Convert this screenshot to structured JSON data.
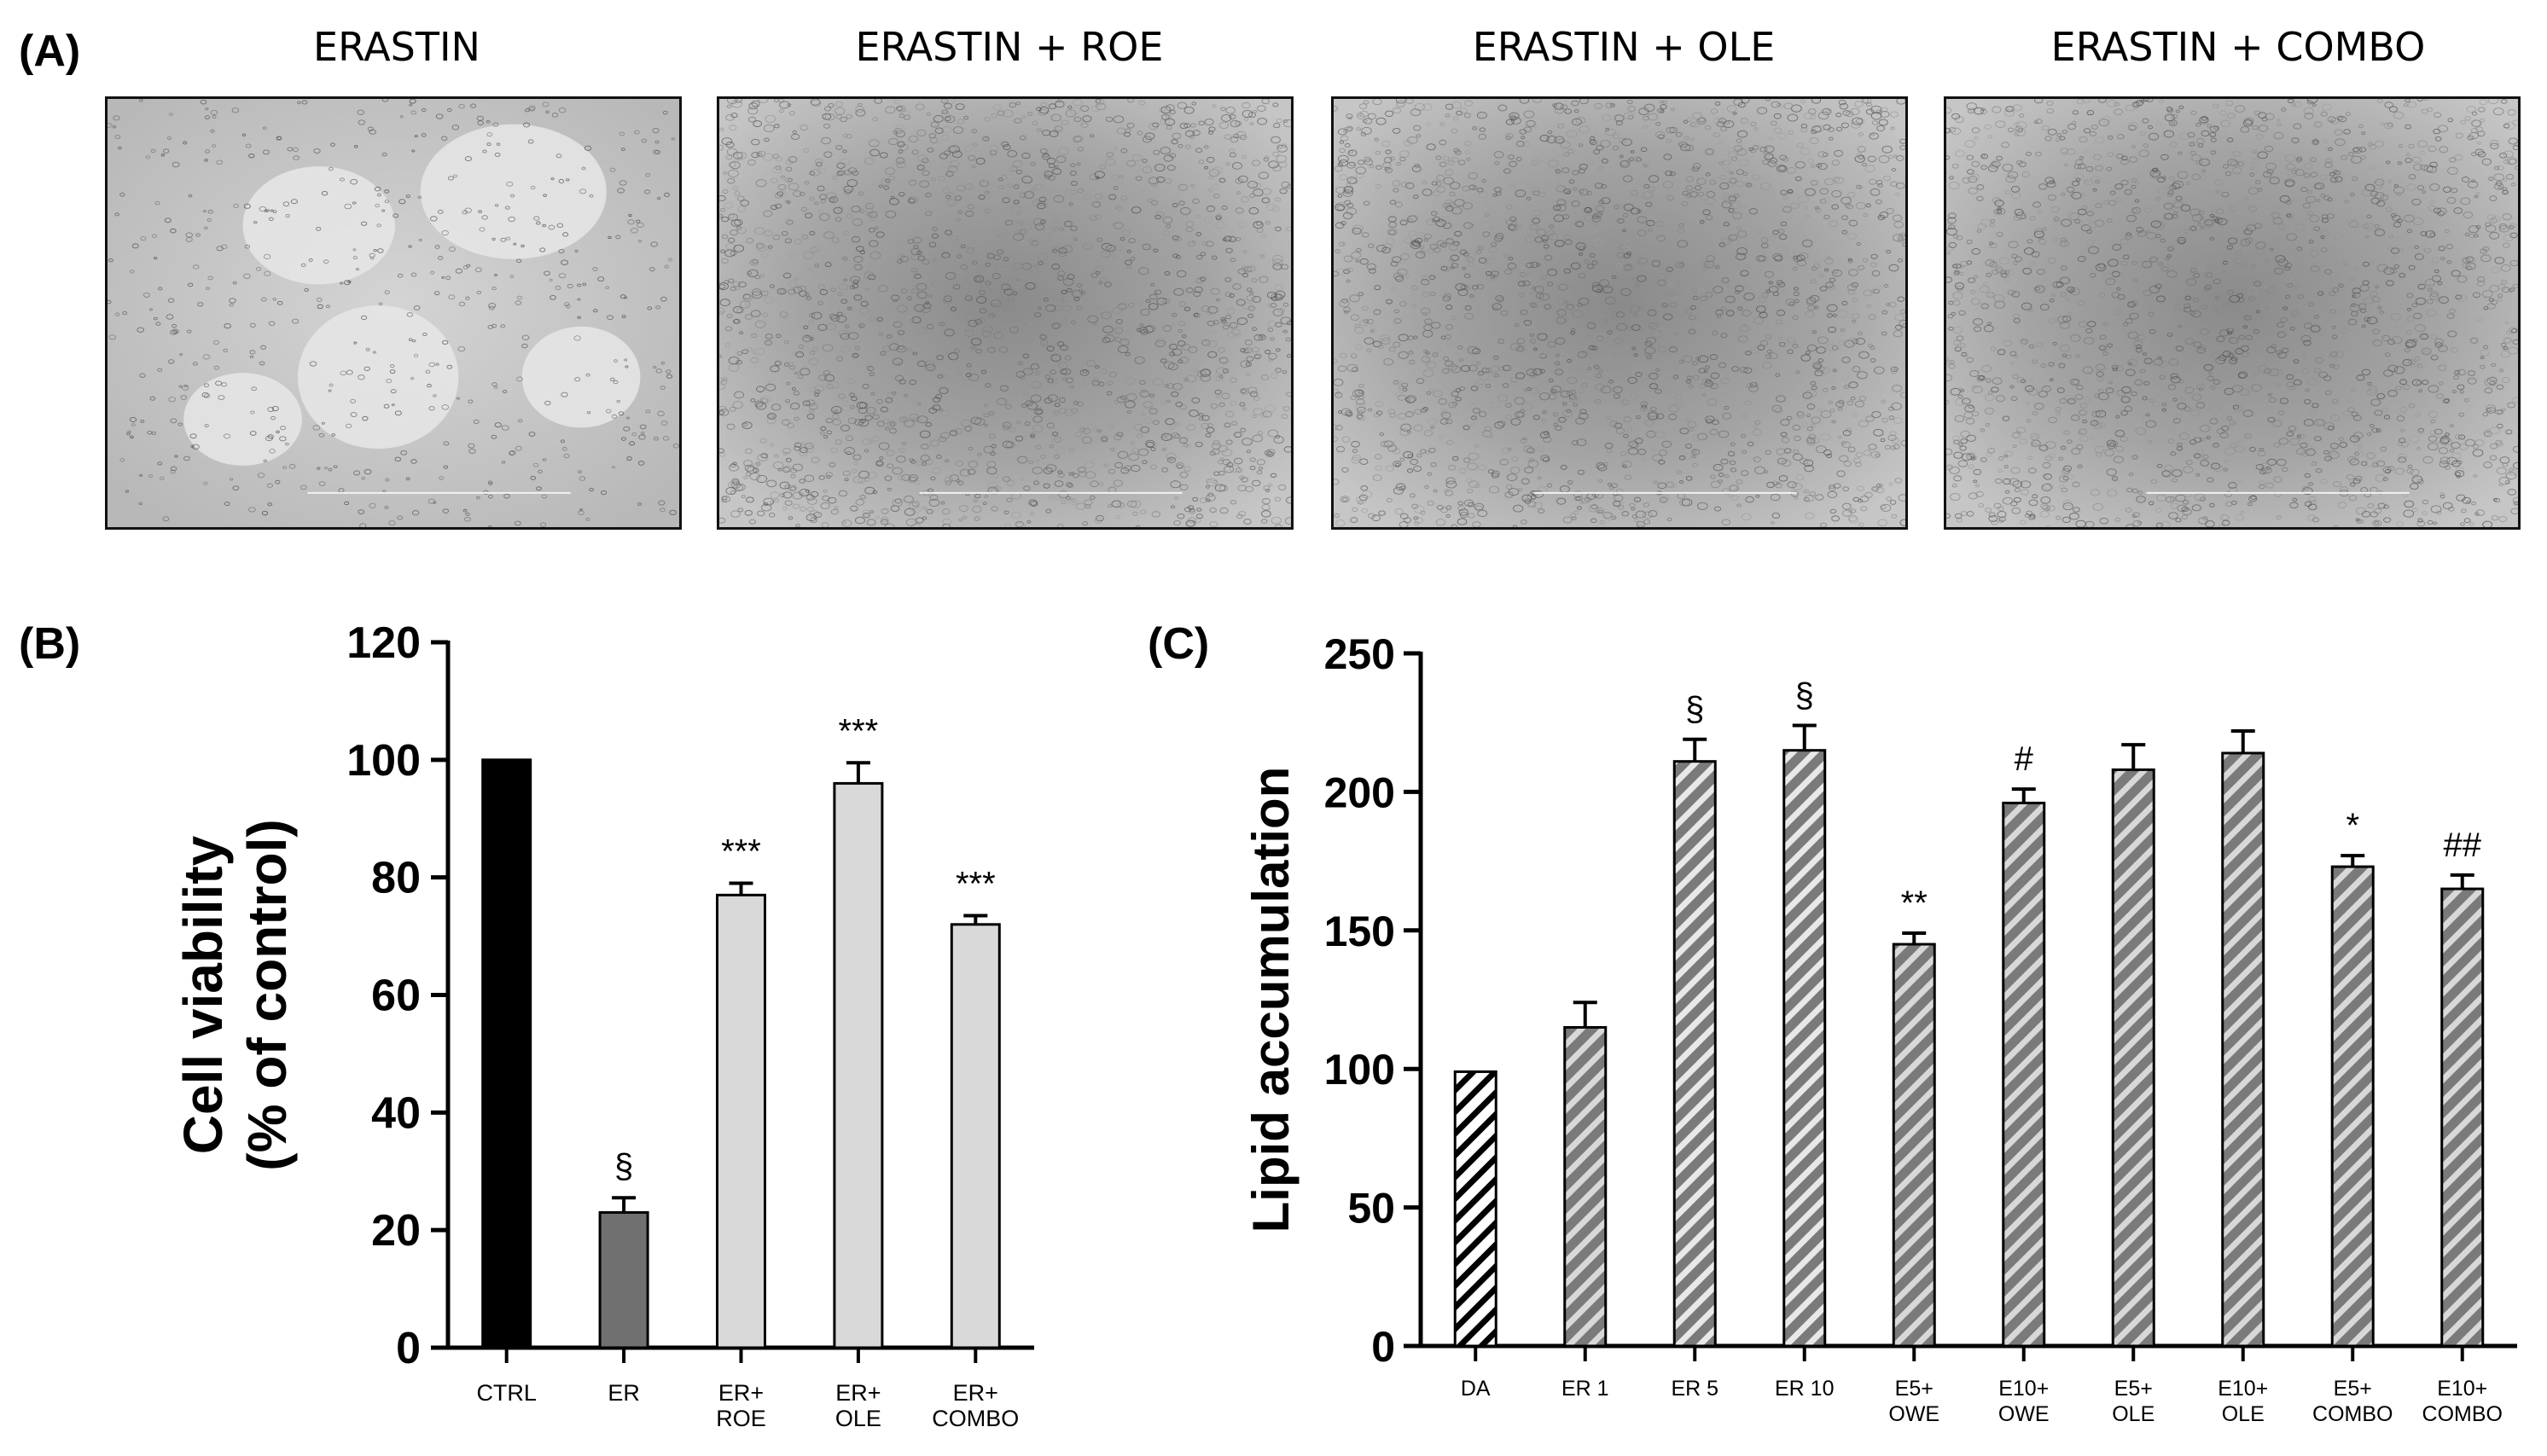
{
  "panels": {
    "a": "(A)",
    "b": "(B)",
    "c": "(C)"
  },
  "micrographs": [
    {
      "label": "ERASTIN",
      "density": "sparse"
    },
    {
      "label": "ERASTIN + ROE",
      "density": "confluent"
    },
    {
      "label": "ERASTIN + OLE",
      "density": "confluent"
    },
    {
      "label": "ERASTIN + COMBO",
      "density": "confluent"
    }
  ],
  "chart_data": [
    {
      "type": "bar",
      "panel": "(B)",
      "ylabel_line1": "Cell viability",
      "ylabel_line2": "(% of control)",
      "ylim": [
        0,
        120
      ],
      "yticks": [
        0,
        20,
        40,
        60,
        80,
        100,
        120
      ],
      "categories": [
        [
          "CTRL"
        ],
        [
          "ER"
        ],
        [
          "ER+",
          "ROE"
        ],
        [
          "ER+",
          "OLE"
        ],
        [
          "ER+",
          "COMBO"
        ]
      ],
      "values": [
        100,
        23,
        77,
        96,
        72
      ],
      "errors": [
        0,
        2.5,
        2,
        3.5,
        1.5
      ],
      "annotations": [
        "",
        "§",
        "***",
        "***",
        "***"
      ],
      "colors": [
        "#000000",
        "#707070",
        "#d9d9d9",
        "#d9d9d9",
        "#d9d9d9"
      ]
    },
    {
      "type": "bar",
      "panel": "(C)",
      "ylabel": "Lipid accumulation",
      "ylim": [
        0,
        250
      ],
      "yticks": [
        0,
        50,
        100,
        150,
        200,
        250
      ],
      "categories": [
        [
          "DA"
        ],
        [
          "ER 1"
        ],
        [
          "ER 5"
        ],
        [
          "ER 10"
        ],
        [
          "E5+",
          "OWE"
        ],
        [
          "E10+",
          "OWE"
        ],
        [
          "E5+",
          "OLE"
        ],
        [
          "E10+",
          "OLE"
        ],
        [
          "E5+",
          "COMBO"
        ],
        [
          "E10+",
          "COMBO"
        ]
      ],
      "values": [
        99,
        115,
        211,
        215,
        145,
        196,
        208,
        214,
        173,
        165
      ],
      "errors": [
        0,
        9,
        8,
        9,
        4,
        5,
        9,
        8,
        4,
        5
      ],
      "annotations": [
        "",
        "",
        "§",
        "§",
        "**",
        "#",
        "",
        "",
        "*",
        "##"
      ],
      "fills": [
        "#ffffff",
        "#7a7a7a",
        "#7a7a7a",
        "#7a7a7a",
        "#7a7a7a",
        "#7a7a7a",
        "#7a7a7a",
        "#7a7a7a",
        "#7a7a7a",
        "#7a7a7a"
      ],
      "hatch_colors": [
        "#000000",
        "#d8d8d8",
        "#e8e8e8",
        "#e8e8e8",
        "#d8d8d8",
        "#d8d8d8",
        "#d8d8d8",
        "#d8d8d8",
        "#d8d8d8",
        "#d8d8d8"
      ]
    }
  ]
}
